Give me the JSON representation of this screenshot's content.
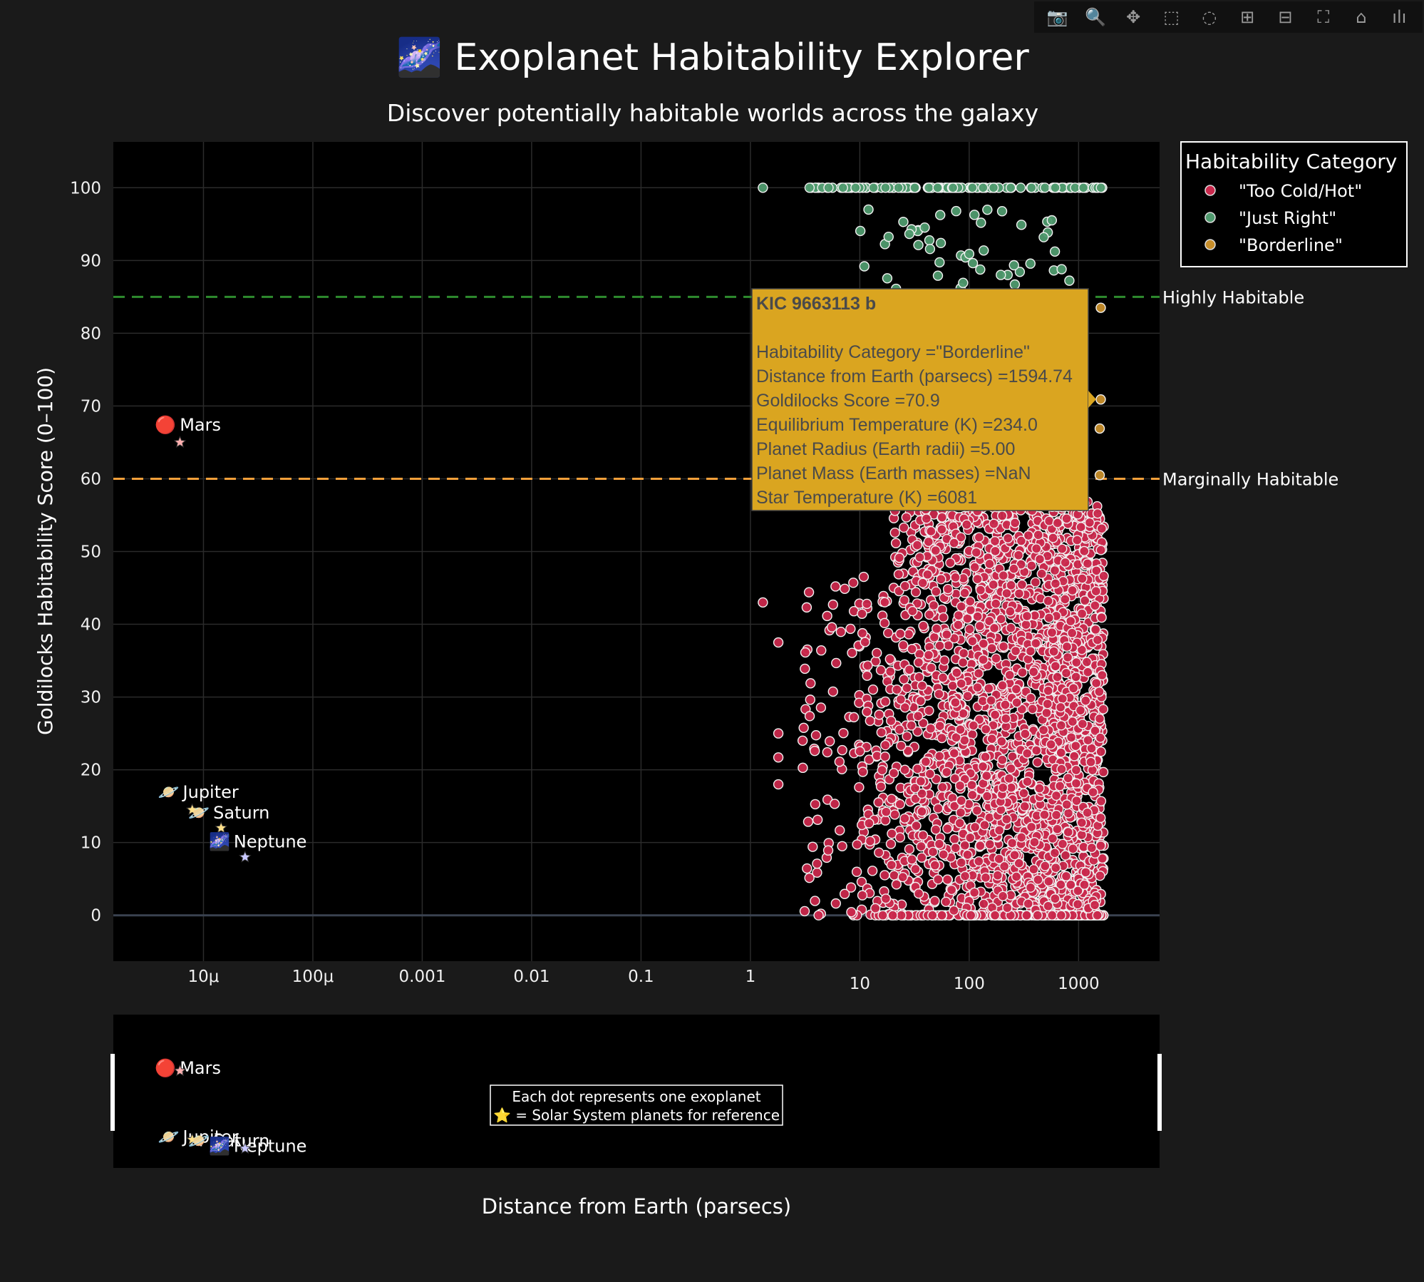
{
  "toolbar": {
    "buttons": [
      {
        "name": "camera-icon",
        "glyph": "📷"
      },
      {
        "name": "zoom-icon",
        "glyph": "🔍"
      },
      {
        "name": "pan-icon",
        "glyph": "✥"
      },
      {
        "name": "box-select-icon",
        "glyph": "⬚"
      },
      {
        "name": "lasso-select-icon",
        "glyph": "◌"
      },
      {
        "name": "zoom-in-icon",
        "glyph": "⊞"
      },
      {
        "name": "zoom-out-icon",
        "glyph": "⊟"
      },
      {
        "name": "autoscale-icon",
        "glyph": "⛶"
      },
      {
        "name": "reset-axes-icon",
        "glyph": "⌂"
      },
      {
        "name": "plotly-logo-icon",
        "glyph": "ılı"
      }
    ]
  },
  "chart_data": {
    "type": "scatter",
    "title": "🌌 Exoplanet Habitability Explorer",
    "subtitle": "Discover potentially habitable worlds across the galaxy",
    "xlabel": "Distance from Earth (parsecs)",
    "ylabel": "Goldilocks Habitability Score (0–100)",
    "x_scale": "log",
    "xlim": [
      1.5e-06,
      5500
    ],
    "ylim": [
      -6.3,
      106.3
    ],
    "x_ticks": [
      {
        "value": 1e-05,
        "label": "10μ"
      },
      {
        "value": 0.0001,
        "label": "100μ"
      },
      {
        "value": 0.001,
        "label": "0.001"
      },
      {
        "value": 0.01,
        "label": "0.01"
      },
      {
        "value": 0.1,
        "label": "0.1"
      },
      {
        "value": 1,
        "label": "1"
      },
      {
        "value": 10,
        "label": "10"
      },
      {
        "value": 100,
        "label": "100"
      },
      {
        "value": 1000,
        "label": "1000"
      }
    ],
    "y_ticks": [
      0,
      10,
      20,
      30,
      40,
      50,
      60,
      70,
      80,
      90,
      100
    ],
    "grid": true,
    "colors": {
      "too_cold_hot": "#c9284c",
      "just_right": "#4f9a6e",
      "borderline": "#c78e2a",
      "highly_line": "#2e8b2e",
      "marginal_line": "#f5a03a",
      "tooltip_bg": "#daa520"
    },
    "legend": {
      "title": "Habitability Category",
      "position": "top-right",
      "entries": [
        "\"Too Cold/Hot\"",
        "\"Just Right\"",
        "\"Borderline\""
      ]
    },
    "reference_lines": [
      {
        "y": 85,
        "label": "Highly Habitable",
        "color": "#2e8b2e"
      },
      {
        "y": 60,
        "label": "Marginally Habitable",
        "color": "#f5a03a"
      }
    ],
    "series": [
      {
        "name": "\"Too Cold/Hot\"",
        "color": "#c9284c",
        "x_range": [
          1.3,
          1700
        ],
        "y_range": [
          0,
          58
        ],
        "sample_points": [
          [
            1.3,
            43
          ],
          [
            1.8,
            37.5
          ],
          [
            1.8,
            25
          ],
          [
            1.8,
            21.7
          ],
          [
            1.8,
            18
          ],
          [
            4.2,
            0
          ],
          [
            3,
            24
          ],
          [
            20,
            0
          ],
          [
            1600,
            50.2
          ],
          [
            6,
            45.2
          ]
        ]
      },
      {
        "name": "\"Just Right\"",
        "color": "#4f9a6e",
        "x_range": [
          1.3,
          1650
        ],
        "y_range": [
          85,
          100
        ],
        "sample_points": [
          [
            1.3,
            100
          ],
          [
            11,
            89.2
          ],
          [
            12,
            97
          ],
          [
            25,
            95.3
          ],
          [
            55,
            92.4
          ],
          [
            100,
            90.9
          ],
          [
            300,
            94.9
          ],
          [
            480,
            93.2
          ],
          [
            700,
            88.8
          ],
          [
            1600,
            100
          ]
        ]
      },
      {
        "name": "\"Borderline\"",
        "color": "#c78e2a",
        "x_range": [
          1500,
          1650
        ],
        "y_range": [
          60,
          85
        ],
        "sample_points": [
          [
            1594.74,
            70.9
          ],
          [
            1594.74,
            83.5
          ],
          [
            1560,
            66.9
          ],
          [
            1560,
            60.5
          ]
        ]
      }
    ],
    "solar_system": [
      {
        "name": "Mars",
        "icon": "🔴",
        "x": 4.5e-06,
        "y": 67.5,
        "star_x": 6.1e-06,
        "star_y": 65,
        "star_color": "#ffb0b0"
      },
      {
        "name": "Jupiter",
        "icon": "🪐",
        "x": 4.8e-06,
        "y": 17,
        "star_x": 7.9e-06,
        "star_y": 14.5,
        "star_color": "#ffe08a"
      },
      {
        "name": "Saturn",
        "icon": "🪐",
        "x": 9.1e-06,
        "y": 14.2,
        "star_x": 1.45e-05,
        "star_y": 12,
        "star_color": "#ffe08a"
      },
      {
        "name": "Neptune",
        "icon": "🌌",
        "x": 1.4e-05,
        "y": 10.2,
        "star_x": 2.4e-05,
        "star_y": 8,
        "star_color": "#c8c8ff"
      }
    ],
    "tooltip": {
      "title": "KIC 9663113 b",
      "lines": [
        "Habitability Category =\"Borderline\"",
        "Distance from Earth (parsecs) =1594.74",
        "Goldilocks Score =70.9",
        "Equilibrium Temperature (K) =234.0",
        "Planet Radius (Earth radii) =5.00",
        "Planet Mass (Earth masses) =NaN",
        "Star Temperature (K) =6081"
      ]
    },
    "annotation_box": {
      "line1": "Each dot represents one exoplanet",
      "line2": "⭐ = Solar System planets for reference"
    }
  }
}
